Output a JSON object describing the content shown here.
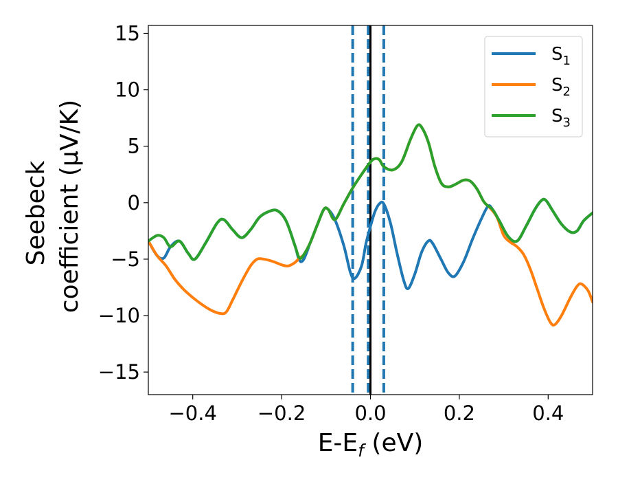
{
  "chart_data": {
    "type": "line",
    "xlabel": "E-E",
    "xlabel_sub": "f",
    "xlabel_unit": " (eV)",
    "ylabel_line1": "Seebeck",
    "ylabel_line2": "coefficient  (μV/K)",
    "xlim": [
      -0.5,
      0.5
    ],
    "ylim": [
      -17,
      15.7
    ],
    "x_ticks": [
      -0.4,
      -0.2,
      0.0,
      0.2,
      0.4
    ],
    "x_tick_labels": [
      "−0.4",
      "−0.2",
      "0.0",
      "0.2",
      "0.4"
    ],
    "y_ticks": [
      15,
      10,
      5,
      0,
      -5,
      -10,
      -15
    ],
    "y_tick_labels": [
      "15",
      "10",
      "5",
      "0",
      "−5",
      "−10",
      "−15"
    ],
    "grid": false,
    "legend_position": "top-right",
    "vlines": [
      {
        "x": -0.04,
        "style": "dashed",
        "color": "#1f77b4"
      },
      {
        "x": -0.005,
        "style": "dashed",
        "color": "#1f77b4"
      },
      {
        "x": 0.03,
        "style": "dashed",
        "color": "#1f77b4"
      },
      {
        "x": 0.0,
        "style": "solid",
        "color": "#000000"
      }
    ],
    "series": [
      {
        "name": "S",
        "sub": "1",
        "color": "#1f77b4",
        "points": [
          [
            -0.5,
            -3.4
          ],
          [
            -0.48,
            -4.7
          ],
          [
            -0.465,
            -4.9
          ],
          [
            -0.45,
            -3.9
          ],
          [
            -0.43,
            -3.4
          ],
          [
            -0.41,
            -4.5
          ],
          [
            -0.395,
            -5.0
          ],
          [
            -0.37,
            -3.5
          ],
          [
            -0.345,
            -1.8
          ],
          [
            -0.33,
            -1.5
          ],
          [
            -0.31,
            -2.4
          ],
          [
            -0.29,
            -3.1
          ],
          [
            -0.27,
            -2.4
          ],
          [
            -0.25,
            -1.3
          ],
          [
            -0.23,
            -0.8
          ],
          [
            -0.21,
            -0.7
          ],
          [
            -0.19,
            -1.6
          ],
          [
            -0.17,
            -3.8
          ],
          [
            -0.16,
            -5.1
          ],
          [
            -0.15,
            -5.0
          ],
          [
            -0.135,
            -3.5
          ],
          [
            -0.12,
            -2.0
          ],
          [
            -0.105,
            -0.6
          ],
          [
            -0.095,
            -0.6
          ],
          [
            -0.08,
            -1.5
          ],
          [
            -0.06,
            -3.8
          ],
          [
            -0.045,
            -6.2
          ],
          [
            -0.035,
            -6.7
          ],
          [
            -0.02,
            -5.6
          ],
          [
            -0.01,
            -3.6
          ],
          [
            0.0,
            -2.1
          ],
          [
            0.01,
            -0.8
          ],
          [
            0.02,
            -0.1
          ],
          [
            0.03,
            -0.1
          ],
          [
            0.045,
            -1.8
          ],
          [
            0.06,
            -4.5
          ],
          [
            0.075,
            -6.9
          ],
          [
            0.085,
            -7.6
          ],
          [
            0.1,
            -6.3
          ],
          [
            0.115,
            -4.4
          ],
          [
            0.13,
            -3.4
          ],
          [
            0.14,
            -3.6
          ],
          [
            0.16,
            -5.1
          ],
          [
            0.175,
            -6.2
          ],
          [
            0.19,
            -6.5
          ],
          [
            0.21,
            -5.2
          ],
          [
            0.23,
            -3.2
          ],
          [
            0.25,
            -1.4
          ],
          [
            0.265,
            -0.3
          ],
          [
            0.275,
            -0.6
          ],
          [
            0.29,
            -1.6
          ],
          [
            0.31,
            -3.0
          ],
          [
            0.33,
            -3.4
          ],
          [
            0.35,
            -2.1
          ],
          [
            0.37,
            -0.6
          ],
          [
            0.385,
            0.2
          ],
          [
            0.395,
            0.2
          ],
          [
            0.41,
            -0.7
          ],
          [
            0.43,
            -1.9
          ],
          [
            0.45,
            -2.6
          ],
          [
            0.465,
            -2.5
          ],
          [
            0.48,
            -1.6
          ],
          [
            0.5,
            -0.9
          ]
        ]
      },
      {
        "name": "S",
        "sub": "2",
        "color": "#ff7f0e",
        "points": [
          [
            -0.5,
            -3.4
          ],
          [
            -0.48,
            -4.7
          ],
          [
            -0.46,
            -5.6
          ],
          [
            -0.44,
            -6.8
          ],
          [
            -0.42,
            -7.7
          ],
          [
            -0.4,
            -8.4
          ],
          [
            -0.38,
            -9.0
          ],
          [
            -0.36,
            -9.5
          ],
          [
            -0.34,
            -9.8
          ],
          [
            -0.325,
            -9.7
          ],
          [
            -0.31,
            -8.6
          ],
          [
            -0.29,
            -7.0
          ],
          [
            -0.27,
            -5.6
          ],
          [
            -0.255,
            -5.0
          ],
          [
            -0.24,
            -5.0
          ],
          [
            -0.22,
            -5.2
          ],
          [
            -0.2,
            -5.5
          ],
          [
            -0.185,
            -5.6
          ],
          [
            -0.17,
            -5.3
          ],
          [
            -0.16,
            -4.9
          ],
          [
            -0.15,
            -4.6
          ],
          [
            -0.135,
            -3.5
          ],
          [
            -0.12,
            -2.0
          ],
          [
            -0.105,
            -0.6
          ],
          [
            -0.095,
            -0.6
          ],
          [
            -0.08,
            -1.5
          ],
          [
            -0.06,
            -0.1
          ],
          [
            -0.04,
            1.3
          ],
          [
            -0.02,
            2.5
          ],
          [
            0.0,
            3.6
          ],
          [
            0.01,
            3.9
          ],
          [
            0.02,
            3.8
          ],
          [
            0.03,
            3.2
          ],
          [
            0.05,
            2.9
          ],
          [
            0.07,
            3.6
          ],
          [
            0.09,
            5.6
          ],
          [
            0.105,
            6.8
          ],
          [
            0.115,
            6.7
          ],
          [
            0.13,
            5.4
          ],
          [
            0.145,
            3.2
          ],
          [
            0.16,
            1.7
          ],
          [
            0.175,
            1.4
          ],
          [
            0.19,
            1.6
          ],
          [
            0.21,
            2.0
          ],
          [
            0.225,
            1.9
          ],
          [
            0.24,
            1.2
          ],
          [
            0.255,
            0.1
          ],
          [
            0.27,
            -0.5
          ],
          [
            0.285,
            -1.3
          ],
          [
            0.3,
            -2.9
          ],
          [
            0.315,
            -3.5
          ],
          [
            0.33,
            -3.9
          ],
          [
            0.345,
            -4.6
          ],
          [
            0.36,
            -5.9
          ],
          [
            0.375,
            -7.6
          ],
          [
            0.39,
            -9.3
          ],
          [
            0.405,
            -10.6
          ],
          [
            0.415,
            -10.8
          ],
          [
            0.43,
            -10.0
          ],
          [
            0.45,
            -8.4
          ],
          [
            0.465,
            -7.4
          ],
          [
            0.475,
            -7.2
          ],
          [
            0.49,
            -7.8
          ],
          [
            0.5,
            -8.8
          ]
        ]
      },
      {
        "name": "S",
        "sub": "3",
        "color": "#2ca02c",
        "points": [
          [
            -0.5,
            -3.4
          ],
          [
            -0.48,
            -2.9
          ],
          [
            -0.465,
            -3.1
          ],
          [
            -0.45,
            -3.9
          ],
          [
            -0.43,
            -3.4
          ],
          [
            -0.41,
            -4.5
          ],
          [
            -0.395,
            -5.0
          ],
          [
            -0.37,
            -3.5
          ],
          [
            -0.345,
            -1.8
          ],
          [
            -0.33,
            -1.5
          ],
          [
            -0.31,
            -2.4
          ],
          [
            -0.29,
            -3.1
          ],
          [
            -0.27,
            -2.4
          ],
          [
            -0.25,
            -1.3
          ],
          [
            -0.23,
            -0.8
          ],
          [
            -0.21,
            -0.7
          ],
          [
            -0.19,
            -1.6
          ],
          [
            -0.17,
            -3.8
          ],
          [
            -0.16,
            -4.9
          ],
          [
            -0.15,
            -4.6
          ],
          [
            -0.135,
            -3.5
          ],
          [
            -0.12,
            -2.0
          ],
          [
            -0.105,
            -0.6
          ],
          [
            -0.095,
            -0.6
          ],
          [
            -0.08,
            -1.5
          ],
          [
            -0.06,
            -0.1
          ],
          [
            -0.04,
            1.3
          ],
          [
            -0.02,
            2.5
          ],
          [
            0.0,
            3.6
          ],
          [
            0.01,
            3.9
          ],
          [
            0.02,
            3.8
          ],
          [
            0.03,
            3.2
          ],
          [
            0.05,
            2.9
          ],
          [
            0.07,
            3.6
          ],
          [
            0.09,
            5.6
          ],
          [
            0.105,
            6.8
          ],
          [
            0.115,
            6.7
          ],
          [
            0.13,
            5.4
          ],
          [
            0.145,
            3.2
          ],
          [
            0.16,
            1.7
          ],
          [
            0.175,
            1.4
          ],
          [
            0.19,
            1.6
          ],
          [
            0.21,
            2.0
          ],
          [
            0.225,
            1.9
          ],
          [
            0.24,
            1.2
          ],
          [
            0.255,
            0.1
          ],
          [
            0.265,
            -0.3
          ],
          [
            0.275,
            -0.6
          ],
          [
            0.29,
            -1.6
          ],
          [
            0.31,
            -3.0
          ],
          [
            0.33,
            -3.4
          ],
          [
            0.35,
            -2.1
          ],
          [
            0.37,
            -0.6
          ],
          [
            0.385,
            0.2
          ],
          [
            0.395,
            0.2
          ],
          [
            0.41,
            -0.7
          ],
          [
            0.43,
            -1.9
          ],
          [
            0.45,
            -2.6
          ],
          [
            0.465,
            -2.5
          ],
          [
            0.48,
            -1.6
          ],
          [
            0.5,
            -0.9
          ]
        ]
      }
    ]
  }
}
